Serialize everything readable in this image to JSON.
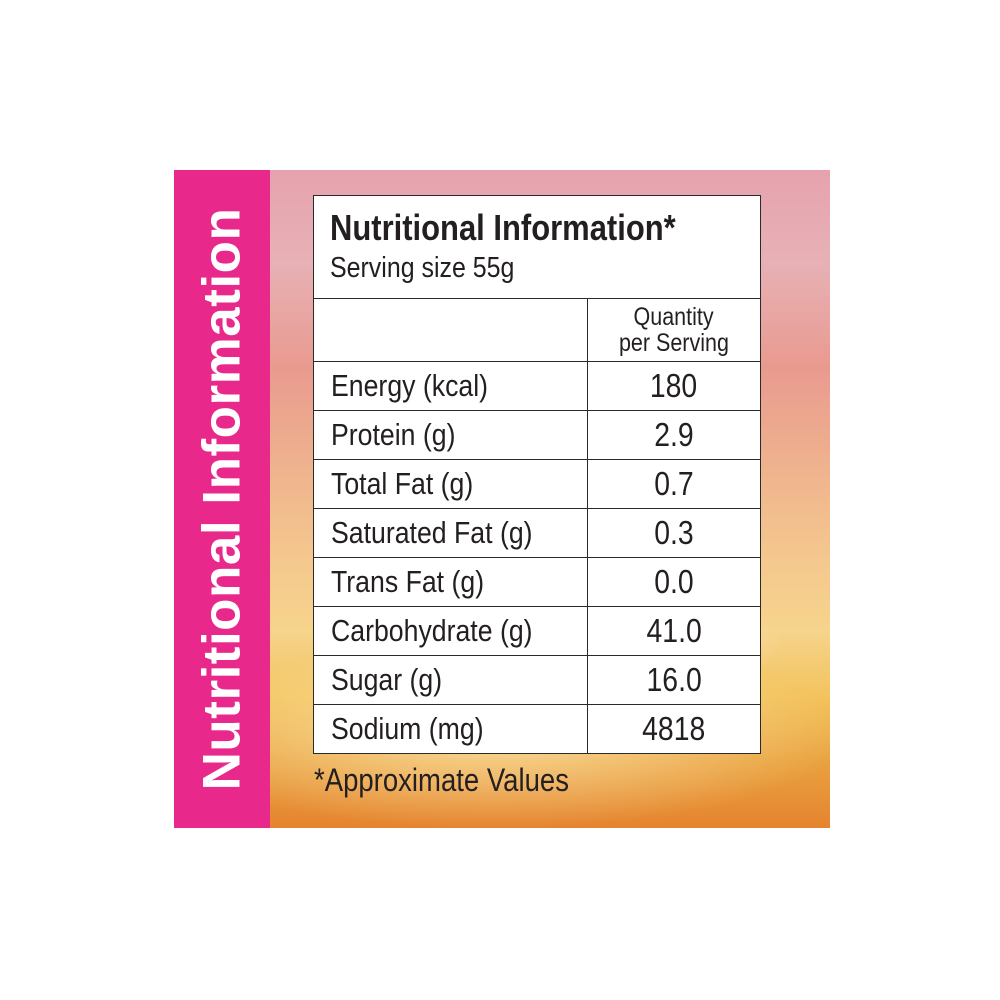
{
  "side_title": "Nutritional Information",
  "label": {
    "title": "Nutritional Information*",
    "serving_size": "Serving size 55g",
    "column_header_line1": "Quantity",
    "column_header_line2": "per Serving",
    "rows": [
      {
        "name": "Energy (kcal)",
        "value": "180"
      },
      {
        "name": "Protein (g)",
        "value": "2.9"
      },
      {
        "name": "Total Fat (g)",
        "value": "0.7"
      },
      {
        "name": "Saturated Fat (g)",
        "value": "0.3"
      },
      {
        "name": "Trans Fat (g)",
        "value": "0.0"
      },
      {
        "name": "Carbohydrate (g)",
        "value": "41.0"
      },
      {
        "name": "Sugar (g)",
        "value": "16.0"
      },
      {
        "name": "Sodium (mg)",
        "value": "4818"
      }
    ]
  },
  "footnote": "*Approximate Values",
  "colors": {
    "side_band": "#e8298b",
    "text": "#231f20",
    "border": "#2a2a2a"
  }
}
